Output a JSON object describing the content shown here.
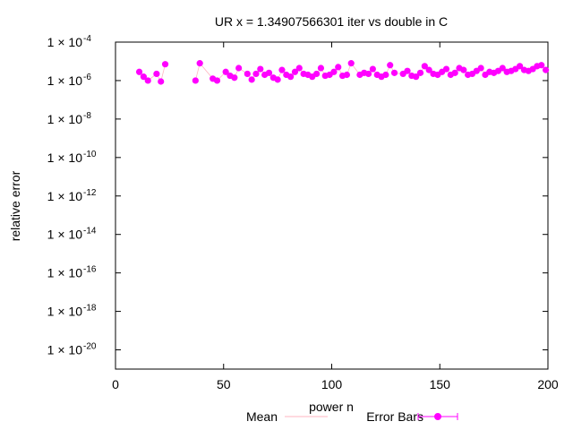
{
  "chart_data": {
    "type": "scatter",
    "title": "UR x = 1.34907566301 iter vs double in C",
    "xlabel": "power n",
    "ylabel": "relative error",
    "x_scale": "linear",
    "y_scale": "log",
    "xlim": [
      0,
      200
    ],
    "ylim_exp": [
      -21,
      -4
    ],
    "x_ticks": [
      0,
      50,
      100,
      150,
      200
    ],
    "y_ticks": [
      {
        "mantissa": "1 × 10",
        "exp": "-4",
        "value_exp": -4
      },
      {
        "mantissa": "1 × 10",
        "exp": "-6",
        "value_exp": -6
      },
      {
        "mantissa": "1 × 10",
        "exp": "-8",
        "value_exp": -8
      },
      {
        "mantissa": "1 × 10",
        "exp": "-10",
        "value_exp": -10
      },
      {
        "mantissa": "1 × 10",
        "exp": "-12",
        "value_exp": -12
      },
      {
        "mantissa": "1 × 10",
        "exp": "-14",
        "value_exp": -14
      },
      {
        "mantissa": "1 × 10",
        "exp": "-16",
        "value_exp": -16
      },
      {
        "mantissa": "1 × 10",
        "exp": "-18",
        "value_exp": -18
      },
      {
        "mantissa": "1 × 10",
        "exp": "-20",
        "value_exp": -20
      }
    ],
    "legend": [
      {
        "label": "Mean",
        "color": "#ffb6c1",
        "style": "line"
      },
      {
        "label": "Error Bars",
        "color": "#ff00ff",
        "style": "errorbar-point"
      }
    ],
    "series": [
      {
        "name": "Error Bars",
        "color": "#ff00ff",
        "segments": [
          {
            "x": [
              11,
              13,
              15,
              19,
              21,
              23
            ],
            "log10_y": [
              -5.55,
              -5.8,
              -6.0,
              -5.65,
              -6.05,
              -5.15
            ]
          },
          {
            "x": [
              37,
              39,
              45,
              47,
              51,
              53,
              55,
              57,
              61,
              63,
              65,
              67,
              69,
              71,
              73,
              75,
              77,
              79,
              81,
              83,
              85,
              87,
              89,
              91,
              93,
              95,
              97,
              99,
              101,
              103,
              105,
              107,
              109,
              113,
              115,
              117,
              119,
              121,
              123,
              125,
              127,
              129,
              133,
              135,
              137,
              139,
              141,
              143,
              145,
              147,
              149,
              151,
              153,
              155,
              157,
              159,
              161,
              163,
              165,
              167,
              169,
              171,
              173,
              175,
              177,
              179,
              181,
              183,
              185,
              187,
              189,
              191,
              193,
              195,
              197,
              199
            ],
            "log10_y": [
              -6.0,
              -5.1,
              -5.9,
              -6.0,
              -5.55,
              -5.75,
              -5.85,
              -5.35,
              -5.65,
              -5.95,
              -5.65,
              -5.4,
              -5.7,
              -5.6,
              -5.85,
              -5.95,
              -5.45,
              -5.7,
              -5.8,
              -5.55,
              -5.35,
              -5.65,
              -5.7,
              -5.8,
              -5.65,
              -5.35,
              -5.75,
              -5.7,
              -5.55,
              -5.3,
              -5.75,
              -5.7,
              -5.1,
              -5.7,
              -5.6,
              -5.65,
              -5.4,
              -5.7,
              -5.8,
              -5.7,
              -5.2,
              -5.6,
              -5.65,
              -5.5,
              -5.75,
              -5.8,
              -5.6,
              -5.25,
              -5.45,
              -5.65,
              -5.7,
              -5.55,
              -5.4,
              -5.7,
              -5.6,
              -5.35,
              -5.45,
              -5.7,
              -5.65,
              -5.5,
              -5.35,
              -5.7,
              -5.55,
              -5.6,
              -5.5,
              -5.35,
              -5.55,
              -5.5,
              -5.4,
              -5.25,
              -5.45,
              -5.5,
              -5.4,
              -5.25,
              -5.2,
              -5.45
            ]
          }
        ]
      }
    ]
  }
}
